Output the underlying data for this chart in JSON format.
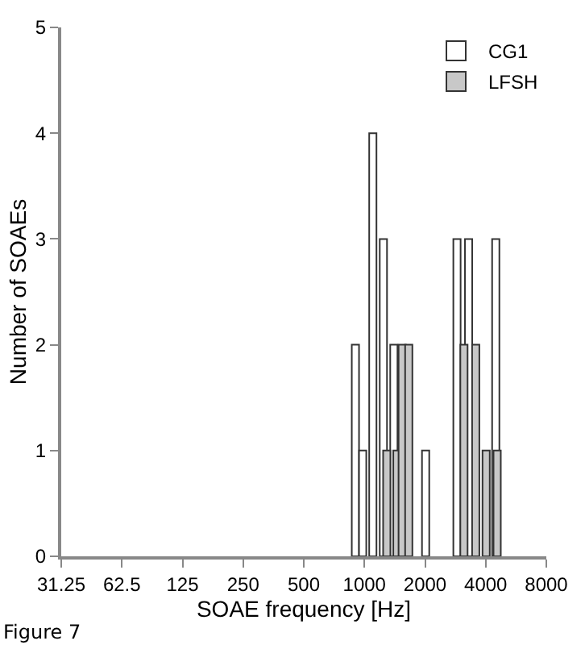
{
  "chart_data": {
    "type": "bar",
    "xlabel": "SOAE frequency [Hz]",
    "ylabel": "Number of SOAEs",
    "log": "x",
    "series": [
      {
        "name": "CG1",
        "color": "#ffffff",
        "x": [
          902,
          980,
          1101,
          1242,
          1400,
          2013,
          2881,
          3290,
          4488
        ],
        "values": [
          2,
          1,
          4,
          3,
          2,
          1,
          3,
          3,
          3
        ]
      },
      {
        "name": "LFSH",
        "color": "#c8c8c8",
        "x": [
          1291,
          1450,
          1540,
          1660,
          3120,
          3570,
          4020,
          4560
        ],
        "values": [
          1,
          1,
          2,
          2,
          2,
          2,
          1,
          1
        ]
      }
    ],
    "xlim": [
      31.25,
      8000
    ],
    "xticks": [
      31.25,
      62.5,
      125,
      250,
      500,
      1000,
      2000,
      4000,
      8000
    ],
    "ylim": [
      0,
      5
    ],
    "yticks": [
      0,
      1,
      2,
      3,
      4,
      5
    ],
    "legend": "top right",
    "annotations": [
      "Figure 7"
    ]
  }
}
